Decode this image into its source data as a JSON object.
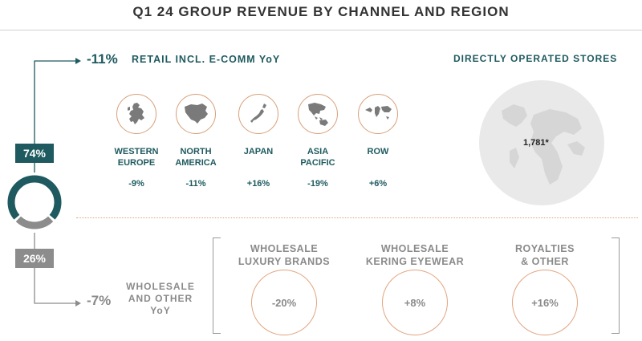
{
  "title": "Q1 24 GROUP REVENUE BY CHANNEL AND REGION",
  "retail": {
    "change": "-11%",
    "label": "RETAIL INCL. E-COMM YoY",
    "share": "74%",
    "regions": [
      {
        "name_line1": "WESTERN",
        "name_line2": "EUROPE",
        "value": "-9%",
        "icon": "europe-map-icon"
      },
      {
        "name_line1": "NORTH",
        "name_line2": "AMERICA",
        "value": "-11%",
        "icon": "north-america-map-icon"
      },
      {
        "name_line1": "JAPAN",
        "name_line2": "",
        "value": "+16%",
        "icon": "japan-map-icon"
      },
      {
        "name_line1": "ASIA",
        "name_line2": "PACIFIC",
        "value": "-19%",
        "icon": "asia-pacific-map-icon"
      },
      {
        "name_line1": "ROW",
        "name_line2": "",
        "value": "+6%",
        "icon": "world-map-icon"
      }
    ]
  },
  "stores": {
    "label": "DIRECTLY OPERATED STORES",
    "count": "1,781*",
    "icon": "globe-icon"
  },
  "wholesale": {
    "change": "-7%",
    "label_line1": "WHOLESALE",
    "label_line2": "AND OTHER",
    "label_line3": "YoY",
    "share": "26%",
    "categories": [
      {
        "title_line1": "WHOLESALE",
        "title_line2": "LUXURY BRANDS",
        "value": "-20%"
      },
      {
        "title_line1": "WHOLESALE",
        "title_line2": "KERING EYEWEAR",
        "value": "+8%"
      },
      {
        "title_line1": "ROYALTIES",
        "title_line2": "& OTHER",
        "value": "+16%"
      }
    ]
  },
  "donut": {
    "retail_fraction": 0.74,
    "wholesale_fraction": 0.26
  },
  "colors": {
    "teal": "#1e5a5f",
    "grey": "#8c8c8c",
    "accent": "#e2a47f",
    "map": "#7a7a7a"
  }
}
